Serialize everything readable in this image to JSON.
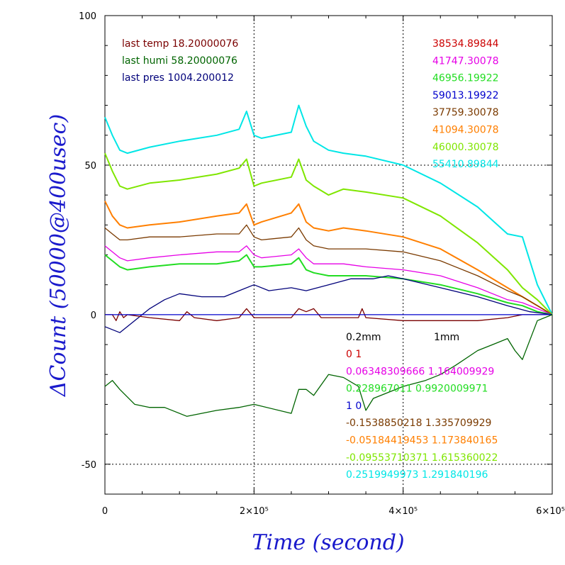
{
  "chart_data": {
    "type": "line",
    "xlabel": "Time (second)",
    "ylabel": "ΔCount (50000@400usec)",
    "xlim": [
      0,
      600000
    ],
    "ylim": [
      -60,
      100
    ],
    "grid": true,
    "x_ticks": [
      {
        "value": 0,
        "label": "0"
      },
      {
        "value": 200000,
        "label": "2×10⁵"
      },
      {
        "value": 400000,
        "label": "4×10⁵"
      },
      {
        "value": 600000,
        "label": "6×10⁵"
      }
    ],
    "y_ticks": [
      {
        "value": -50,
        "label": "-50"
      },
      {
        "value": 0,
        "label": "0"
      },
      {
        "value": 50,
        "label": "50"
      },
      {
        "value": 100,
        "label": "100"
      }
    ],
    "annotations_left": [
      {
        "text": "last temp 18.20000076",
        "color": "#7a0000"
      },
      {
        "text": "last humi 58.20000076",
        "color": "#006400"
      },
      {
        "text": "last pres 1004.200012",
        "color": "#00007a"
      }
    ],
    "annotations_right": [
      {
        "text": "38534.89844",
        "color": "#cc0000"
      },
      {
        "text": "41747.30078",
        "color": "#e600e6"
      },
      {
        "text": "46956.19922",
        "color": "#22dd22"
      },
      {
        "text": "59013.19922",
        "color": "#0000cc"
      },
      {
        "text": "37759.30078",
        "color": "#7a3a00"
      },
      {
        "text": "41094.30078",
        "color": "#ff7f00"
      },
      {
        "text": "46000.30078",
        "color": "#7fe600"
      },
      {
        "text": "55410.89844",
        "color": "#00e6e6"
      }
    ],
    "coef_header": {
      "left": "0.2mm",
      "right": "1mm",
      "color": "#000000"
    },
    "coef_lines": [
      {
        "text": "0 1",
        "color": "#cc0000"
      },
      {
        "text": "0.06348309666 1.164009929",
        "color": "#e600e6"
      },
      {
        "text": "0.228967011 0.9920009971",
        "color": "#22dd22"
      },
      {
        "text": "1 0",
        "color": "#0000cc"
      },
      {
        "text": "-0.1538850218 1.335709929",
        "color": "#7a3a00"
      },
      {
        "text": "-0.05184419453 1.173840165",
        "color": "#ff7f00"
      },
      {
        "text": "-0.09553710371 1.615360022",
        "color": "#7fe600"
      },
      {
        "text": "0.2519949973 1.291840196",
        "color": "#00e6e6"
      }
    ],
    "series": [
      {
        "color": "#00e6e6",
        "x": [
          0,
          10000,
          20000,
          30000,
          60000,
          100000,
          150000,
          180000,
          190000,
          200000,
          210000,
          250000,
          260000,
          270000,
          280000,
          300000,
          320000,
          350000,
          400000,
          450000,
          500000,
          540000,
          560000,
          580000,
          600000
        ],
        "y": [
          66,
          60,
          55,
          54,
          56,
          58,
          60,
          62,
          68,
          60,
          59,
          61,
          70,
          63,
          58,
          55,
          54,
          53,
          50,
          44,
          36,
          27,
          26,
          10,
          0
        ]
      },
      {
        "color": "#7fe600",
        "x": [
          0,
          10000,
          20000,
          30000,
          60000,
          100000,
          150000,
          180000,
          190000,
          200000,
          210000,
          250000,
          260000,
          270000,
          280000,
          300000,
          320000,
          350000,
          400000,
          450000,
          500000,
          540000,
          560000,
          580000,
          600000
        ],
        "y": [
          54,
          48,
          43,
          42,
          44,
          45,
          47,
          49,
          52,
          43,
          44,
          46,
          52,
          45,
          43,
          40,
          42,
          41,
          39,
          33,
          24,
          15,
          9,
          5,
          0
        ]
      },
      {
        "color": "#ff7f00",
        "x": [
          0,
          10000,
          20000,
          30000,
          60000,
          100000,
          150000,
          180000,
          190000,
          200000,
          210000,
          250000,
          260000,
          270000,
          280000,
          300000,
          320000,
          350000,
          400000,
          450000,
          500000,
          540000,
          560000,
          580000,
          600000
        ],
        "y": [
          38,
          33,
          30,
          29,
          30,
          31,
          33,
          34,
          37,
          30,
          31,
          34,
          37,
          31,
          29,
          28,
          29,
          28,
          26,
          22,
          15,
          9,
          6,
          3,
          0
        ]
      },
      {
        "color": "#7a3a00",
        "x": [
          0,
          10000,
          20000,
          30000,
          60000,
          100000,
          150000,
          180000,
          190000,
          200000,
          210000,
          250000,
          260000,
          270000,
          280000,
          300000,
          320000,
          350000,
          400000,
          450000,
          500000,
          540000,
          560000,
          580000,
          600000
        ],
        "y": [
          29,
          27,
          25,
          25,
          26,
          26,
          27,
          27,
          30,
          26,
          25,
          26,
          29,
          25,
          23,
          22,
          22,
          22,
          21,
          18,
          13,
          8,
          6,
          3,
          0
        ]
      },
      {
        "color": "#e600e6",
        "x": [
          0,
          10000,
          20000,
          30000,
          60000,
          100000,
          150000,
          180000,
          190000,
          200000,
          210000,
          250000,
          260000,
          270000,
          280000,
          300000,
          320000,
          350000,
          400000,
          450000,
          500000,
          540000,
          560000,
          580000,
          600000
        ],
        "y": [
          23,
          21,
          19,
          18,
          19,
          20,
          21,
          21,
          23,
          20,
          19,
          20,
          22,
          19,
          17,
          17,
          17,
          16,
          15,
          13,
          9,
          5,
          4,
          2,
          0
        ]
      },
      {
        "color": "#22dd22",
        "x": [
          0,
          10000,
          20000,
          30000,
          60000,
          100000,
          150000,
          180000,
          190000,
          200000,
          210000,
          250000,
          260000,
          270000,
          280000,
          300000,
          320000,
          350000,
          400000,
          450000,
          500000,
          540000,
          560000,
          580000,
          600000
        ],
        "y": [
          20,
          18,
          16,
          15,
          16,
          17,
          17,
          18,
          20,
          16,
          16,
          17,
          19,
          15,
          14,
          13,
          13,
          13,
          12,
          10,
          7,
          4,
          3,
          1,
          0
        ]
      },
      {
        "color": "#00007a",
        "x": [
          0,
          20000,
          40000,
          60000,
          80000,
          100000,
          130000,
          160000,
          180000,
          200000,
          220000,
          250000,
          270000,
          300000,
          330000,
          360000,
          380000,
          400000,
          450000,
          500000,
          540000,
          570000,
          600000
        ],
        "y": [
          -4,
          -6,
          -2,
          2,
          5,
          7,
          6,
          6,
          8,
          10,
          8,
          9,
          8,
          10,
          12,
          12,
          13,
          12,
          9,
          6,
          3,
          1,
          0
        ]
      },
      {
        "color": "#7a0000",
        "x": [
          0,
          10000,
          15000,
          20000,
          25000,
          30000,
          60000,
          100000,
          110000,
          120000,
          150000,
          180000,
          190000,
          200000,
          250000,
          260000,
          270000,
          280000,
          290000,
          300000,
          340000,
          345000,
          350000,
          400000,
          500000,
          540000,
          560000,
          600000
        ],
        "y": [
          0,
          0,
          -2,
          1,
          -1,
          0,
          -1,
          -2,
          1,
          -1,
          -2,
          -1,
          2,
          -1,
          -1,
          2,
          1,
          2,
          -1,
          -1,
          -1,
          2,
          -1,
          -2,
          -2,
          -1,
          0,
          0
        ]
      },
      {
        "color": "#0000cc",
        "x": [
          0,
          600000
        ],
        "y": [
          0,
          0
        ]
      },
      {
        "color": "#006400",
        "x": [
          0,
          10000,
          20000,
          40000,
          60000,
          80000,
          110000,
          150000,
          180000,
          200000,
          250000,
          260000,
          270000,
          280000,
          300000,
          320000,
          340000,
          350000,
          360000,
          400000,
          430000,
          450000,
          470000,
          500000,
          520000,
          540000,
          550000,
          560000,
          580000,
          600000
        ],
        "y": [
          -24,
          -22,
          -25,
          -30,
          -31,
          -31,
          -34,
          -32,
          -31,
          -30,
          -33,
          -25,
          -25,
          -27,
          -20,
          -21,
          -24,
          -32,
          -28,
          -24,
          -22,
          -20,
          -17,
          -12,
          -10,
          -8,
          -12,
          -15,
          -2,
          0
        ]
      }
    ]
  }
}
